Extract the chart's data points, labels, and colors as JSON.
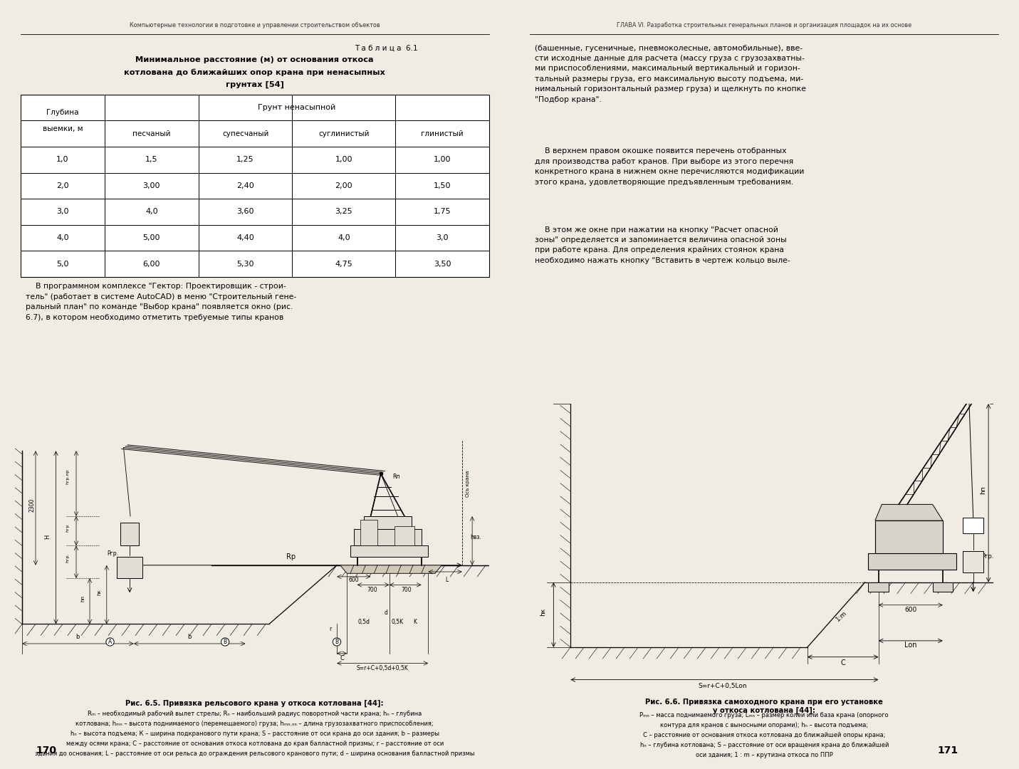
{
  "bg_color": "#f0ece4",
  "left_header": "Компьютерные технологии в подготовке и управлении строительством объектов",
  "right_header": "ГЛАВА VI. Разработка строительных генеральных планов и организация площадок на их основе",
  "table_title_line1": "Т а б л и ц а  6.1",
  "table_title_line2": "Минимальное расстояние (м) от основания откоса",
  "table_title_line3": "котлована до ближайших опор крана при ненасыпных",
  "table_title_line4": "грунтах [54]",
  "col_header_top": "Грунт ненасыпной",
  "col_header_depth": "Глубина\n\nвыемки, м",
  "sub_headers": [
    "песчаный",
    "супесчаный",
    "суглинистый",
    "глинистый"
  ],
  "table_data": [
    [
      "1,0",
      "1,5",
      "1,25",
      "1,00",
      "1,00"
    ],
    [
      "2,0",
      "3,00",
      "2,40",
      "2,00",
      "1,50"
    ],
    [
      "3,0",
      "4,0",
      "3,60",
      "3,25",
      "1,75"
    ],
    [
      "4,0",
      "5,00",
      "4,40",
      "4,0",
      "3,0"
    ],
    [
      "5,0",
      "6,00",
      "5,30",
      "4,75",
      "3,50"
    ]
  ],
  "left_text1": "    В программном комплексе \"Гектор: Проектировщик - строи-\nтель\" (работает в системе AutoCAD) в меню \"Строительный гене-\nральный план\" по команде \"Выбор крана\" появляется окно (рис.\n6.7), в котором необходимо отметить требуемые типы кранов",
  "fig65_caption_bold": "Рис. 6.5. Привязка рельсового крана у откоса котлована [44]:",
  "fig65_caption_lines": [
    "Rₘ – необходимый рабочий вылет стрелы; Rₙ – наибольший радиус поворотной части крана; hₙ – глубина",
    "котлована; hₘₙ – высота поднимаемого (перемещаемого) груза; hₘₙ.ₙₙ – длина грузозахватного приспособления;",
    "hₙ – высота подъема; К – ширина подкранового пути крана; S – расстояние от оси крана до оси здания; b – размеры",
    "между осями крана; С – расстояние от основания откоса котлована до края балластной призмы; r – расстояние от оси",
    "здания до основания; L – расстояние от оси рельса до ограждения рельсового кранового пути; d – ширина основания балластной призмы"
  ],
  "page_left": "170",
  "page_right": "171",
  "right_text1": "(башенные, гусеничные, пневмоколесные, автомобильные), вве-\nсти исходные данные для расчета (массу груза с грузозахватны-\nми приспособлениями, максимальный вертикальный и горизон-\nтальный размеры груза, его максимальную высоту подъема, ми-\nнимальный горизонтальный размер груза) и щелкнуть по кнопке\n\"Подбор крана\".",
  "right_text2": "    В верхнем правом окошке появится перечень отобранных\nдля производства работ кранов. При выборе из этого перечня\nконкретного крана в нижнем окне перечисляются модификации\nэтого крана, удовлетворяющие предъявленным требованиям.",
  "right_text3": "    В этом же окне при нажатии на кнопку \"Расчет опасной\nзоны\" определяется и запоминается величина опасной зоны\nпри работе крана. Для определения крайних стоянок крана\nнеобходимо нажать кнопку \"Вставить в чертеж кольцо выле-",
  "fig66_caption_bold": "Рис. 6.6. Привязка самоходного крана при его установке\nу откоса котлована [44]:",
  "fig66_caption_lines": [
    "Pₘₙ – масса поднимаемого груза; Lₘₙ – размер колеи или база крана (опорного",
    "контура для кранов с выносными опорами); hₙ – высота подъема;",
    "С – расстояние от основания откоса котлована до ближайшей опоры крана;",
    "hₙ – глубина котлована; S – расстояние от оси вращения крана до ближайшей",
    "оси здания; 1 : m – крутизна откоса по ППР"
  ]
}
